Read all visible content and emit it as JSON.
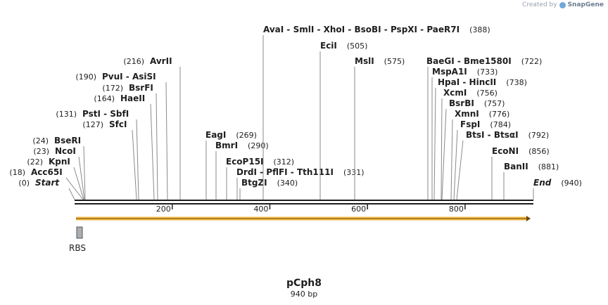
{
  "watermark": {
    "prefix": "Created by",
    "brand": "SnapGene"
  },
  "plasmid": {
    "name": "pCph8",
    "length_text": "940 bp",
    "length": 940
  },
  "axis": {
    "ticks": [
      200,
      400,
      600,
      800
    ]
  },
  "feature": {
    "name": "RBS",
    "arrow_color": "#f5b942",
    "rbs_color": "#a9aeb4"
  },
  "sites": [
    {
      "label": "Start",
      "italic": true,
      "pos": 0,
      "num": "(0)"
    },
    {
      "label": "Acc65I",
      "pos": 18,
      "num": "(18)"
    },
    {
      "label": "KpnI",
      "pos": 22,
      "num": "(22)"
    },
    {
      "label": "NcoI",
      "pos": 23,
      "num": "(23)"
    },
    {
      "label": "BseRI",
      "pos": 24,
      "num": "(24)"
    },
    {
      "label": "SfcI",
      "pos": 127,
      "num": "(127)"
    },
    {
      "label": "PstI  - SbfI",
      "pos": 131,
      "num": "(131)"
    },
    {
      "label": "HaeII",
      "pos": 164,
      "num": "(164)"
    },
    {
      "label": "BsrFI",
      "pos": 172,
      "num": "(172)"
    },
    {
      "label": "PvuI  - AsiSI",
      "pos": 190,
      "num": "(190)"
    },
    {
      "label": "AvrII",
      "pos": 216,
      "num": "(216)"
    },
    {
      "label": "EagI",
      "pos": 269,
      "num": "(269)"
    },
    {
      "label": "BmrI",
      "pos": 290,
      "num": "(290)"
    },
    {
      "label": "EcoP15I",
      "pos": 312,
      "num": "(312)"
    },
    {
      "label": "DrdI  - PflFI  - Tth111I",
      "pos": 331,
      "num": "(331)"
    },
    {
      "label": "BtgZI",
      "pos": 340,
      "num": "(340)"
    },
    {
      "label": "AvaI  - SmlI  - XhoI  - BsoBI  - PspXI  - PaeR7I",
      "pos": 388,
      "num": "(388)"
    },
    {
      "label": "EciI",
      "pos": 505,
      "num": "(505)"
    },
    {
      "label": "MslI",
      "pos": 575,
      "num": "(575)"
    },
    {
      "label": "BaeGI  - Bme1580I",
      "pos": 722,
      "num": "(722)"
    },
    {
      "label": "MspA1I",
      "pos": 733,
      "num": "(733)"
    },
    {
      "label": "HpaI  - HincII",
      "pos": 738,
      "num": "(738)"
    },
    {
      "label": "XcmI",
      "pos": 756,
      "num": "(756)"
    },
    {
      "label": "BsrBI",
      "pos": 757,
      "num": "(757)"
    },
    {
      "label": "XmnI",
      "pos": 776,
      "num": "(776)"
    },
    {
      "label": "FspI",
      "pos": 784,
      "num": "(784)"
    },
    {
      "label": "BtsI  - BtsαI",
      "pos": 792,
      "num": "(792)"
    },
    {
      "label": "EcoNI",
      "pos": 856,
      "num": "(856)"
    },
    {
      "label": "BanII",
      "pos": 881,
      "num": "(881)"
    },
    {
      "label": "End",
      "italic": true,
      "pos": 940,
      "num": "(940)"
    }
  ]
}
